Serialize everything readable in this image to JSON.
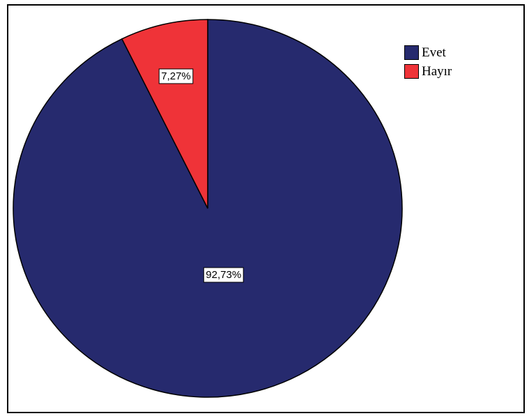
{
  "chart_data": {
    "type": "pie",
    "categories": [
      "Evet",
      "Hayır"
    ],
    "values": [
      92.73,
      7.27
    ],
    "data_labels": [
      "92,73%",
      "7,27%"
    ],
    "colors": [
      "#262a6e",
      "#ef3338"
    ],
    "legend_placement": "top-right",
    "start_angle_deg": 0,
    "direction": "clockwise"
  },
  "legend": {
    "items": [
      {
        "label": "Evet",
        "color": "#262a6e"
      },
      {
        "label": "Hayır",
        "color": "#ef3338"
      }
    ]
  }
}
